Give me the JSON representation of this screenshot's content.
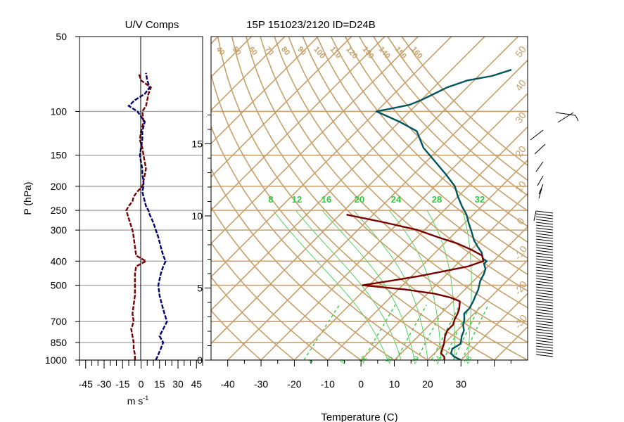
{
  "chart_data": [
    {
      "type": "line",
      "title": "U/V Comps",
      "ylabel": "P (hPa)",
      "xlabel": "m s",
      "xlabel_superscript": "-1",
      "xlim": [
        -50,
        50
      ],
      "x_ticks": [
        -45,
        -30,
        -15,
        0,
        15,
        30,
        45
      ],
      "p_ticks": [
        50,
        100,
        150,
        200,
        250,
        300,
        400,
        500,
        700,
        850,
        1000
      ],
      "series": [
        {
          "color": "#7a0000",
          "p": [
            1000,
            950,
            900,
            850,
            800,
            750,
            700,
            650,
            600,
            550,
            500,
            450,
            420,
            400,
            380,
            350,
            320,
            300,
            280,
            260,
            250,
            240,
            230,
            220,
            210,
            200,
            190,
            180,
            170,
            160,
            150,
            140,
            130,
            120,
            110,
            100,
            95,
            90,
            85,
            80,
            75,
            70
          ],
          "values": [
            -5,
            -5,
            -6,
            -6,
            -7,
            -8,
            -6,
            -7,
            -6,
            -5,
            -5,
            -5,
            -4,
            4,
            -4,
            -5,
            -6,
            -7,
            -9,
            -11,
            -12,
            -10,
            -7,
            -6,
            -3,
            1,
            2,
            3,
            4,
            3,
            2,
            1,
            -1,
            0,
            2,
            1,
            4,
            5,
            6,
            8,
            0,
            -2
          ]
        },
        {
          "color": "#00006e",
          "p": [
            1000,
            950,
            900,
            850,
            800,
            750,
            700,
            650,
            600,
            550,
            500,
            450,
            420,
            400,
            380,
            350,
            320,
            300,
            280,
            260,
            250,
            240,
            230,
            220,
            210,
            200,
            190,
            180,
            170,
            160,
            150,
            140,
            130,
            120,
            110,
            100,
            95,
            90,
            85,
            80,
            75,
            70
          ],
          "values": [
            12,
            14,
            16,
            18,
            15,
            18,
            21,
            19,
            17,
            15,
            14,
            16,
            18,
            20,
            18,
            16,
            14,
            12,
            10,
            7,
            6,
            4,
            3,
            2,
            1,
            2,
            2,
            1,
            1,
            0,
            -1,
            0,
            1,
            1,
            3,
            -3,
            -10,
            -5,
            3,
            7,
            5,
            4
          ]
        }
      ]
    },
    {
      "type": "line",
      "title": "15P 151023/2120 ID=D24B",
      "xlabel": "Temperature (C)",
      "xlim": [
        -45,
        50
      ],
      "x_ticks": [
        -40,
        -30,
        -20,
        -10,
        0,
        10,
        20,
        30
      ],
      "height_ticks": [
        0,
        5,
        10,
        15
      ],
      "mixing_ratio_labels": [
        "8",
        "12",
        "16",
        "20",
        "24",
        "28",
        "32"
      ],
      "isotherm_labels": [
        "40",
        "50",
        "60",
        "70",
        "80",
        "90",
        "100",
        "110",
        "120",
        "130",
        "140",
        "150",
        "160"
      ],
      "bottom_labels": [
        "4",
        "8",
        "12",
        "16",
        "20",
        "24",
        "28"
      ],
      "right_labels": [
        "50",
        "40",
        "30",
        "20",
        "10",
        "0",
        "-10",
        "-20",
        "-30"
      ],
      "series": [
        {
          "name": "temperature",
          "color": "#00555e",
          "p": [
            1000,
            970,
            940,
            900,
            860,
            830,
            800,
            760,
            720,
            690,
            650,
            620,
            580,
            550,
            520,
            500,
            480,
            450,
            430,
            410,
            400,
            390,
            370,
            350,
            330,
            300,
            280,
            260,
            240,
            220,
            200,
            180,
            160,
            140,
            120,
            110,
            100,
            97,
            94,
            90,
            85,
            80,
            75,
            72,
            68
          ],
          "values": [
            30,
            27,
            25,
            24,
            25,
            24,
            23,
            22,
            20,
            19,
            17,
            17,
            16,
            15,
            14,
            13,
            12,
            11,
            10,
            8,
            8,
            6,
            4,
            1,
            -2,
            -6,
            -9,
            -12,
            -16,
            -20,
            -24,
            -30,
            -37,
            -45,
            -52,
            -60,
            -70,
            -66,
            -62,
            -60,
            -58,
            -56,
            -52,
            -46,
            -42
          ]
        },
        {
          "name": "dewpoint",
          "color": "#7a0000",
          "p": [
            1000,
            970,
            940,
            900,
            860,
            830,
            800,
            760,
            720,
            690,
            650,
            620,
            580,
            560,
            540,
            520,
            500,
            480,
            460,
            440,
            420,
            400,
            380,
            360,
            340,
            320,
            300,
            280,
            260
          ],
          "values": [
            25,
            24,
            22,
            21,
            20,
            19,
            18,
            17,
            17,
            16,
            15,
            14,
            12,
            8,
            2,
            -8,
            -22,
            -15,
            -8,
            -2,
            4,
            7,
            5,
            0,
            -6,
            -14,
            -22,
            -34,
            -48
          ]
        }
      ]
    }
  ]
}
